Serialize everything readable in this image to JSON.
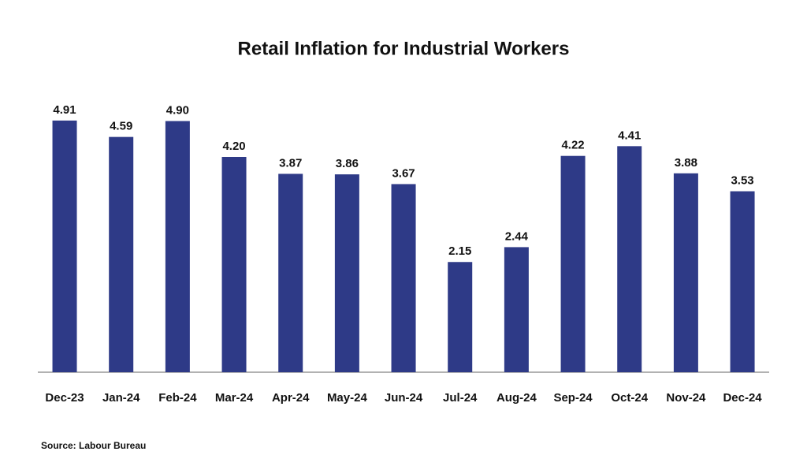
{
  "chart_data": {
    "type": "bar",
    "title": "Retail Inflation for Industrial Workers",
    "categories": [
      "Dec-23",
      "Jan-24",
      "Feb-24",
      "Mar-24",
      "Apr-24",
      "May-24",
      "Jun-24",
      "Jul-24",
      "Aug-24",
      "Sep-24",
      "Oct-24",
      "Nov-24",
      "Dec-24"
    ],
    "values": [
      4.91,
      4.59,
      4.9,
      4.2,
      3.87,
      3.86,
      3.67,
      2.15,
      2.44,
      4.22,
      4.41,
      3.88,
      3.53
    ],
    "value_labels": [
      "4.91",
      "4.59",
      "4.90",
      "4.20",
      "3.87",
      "3.86",
      "3.67",
      "2.15",
      "2.44",
      "4.22",
      "4.41",
      "3.88",
      "3.53"
    ],
    "color": "#2e3a87",
    "ylim": [
      0,
      5
    ],
    "grid": false,
    "source": "Source: Labour Bureau"
  }
}
